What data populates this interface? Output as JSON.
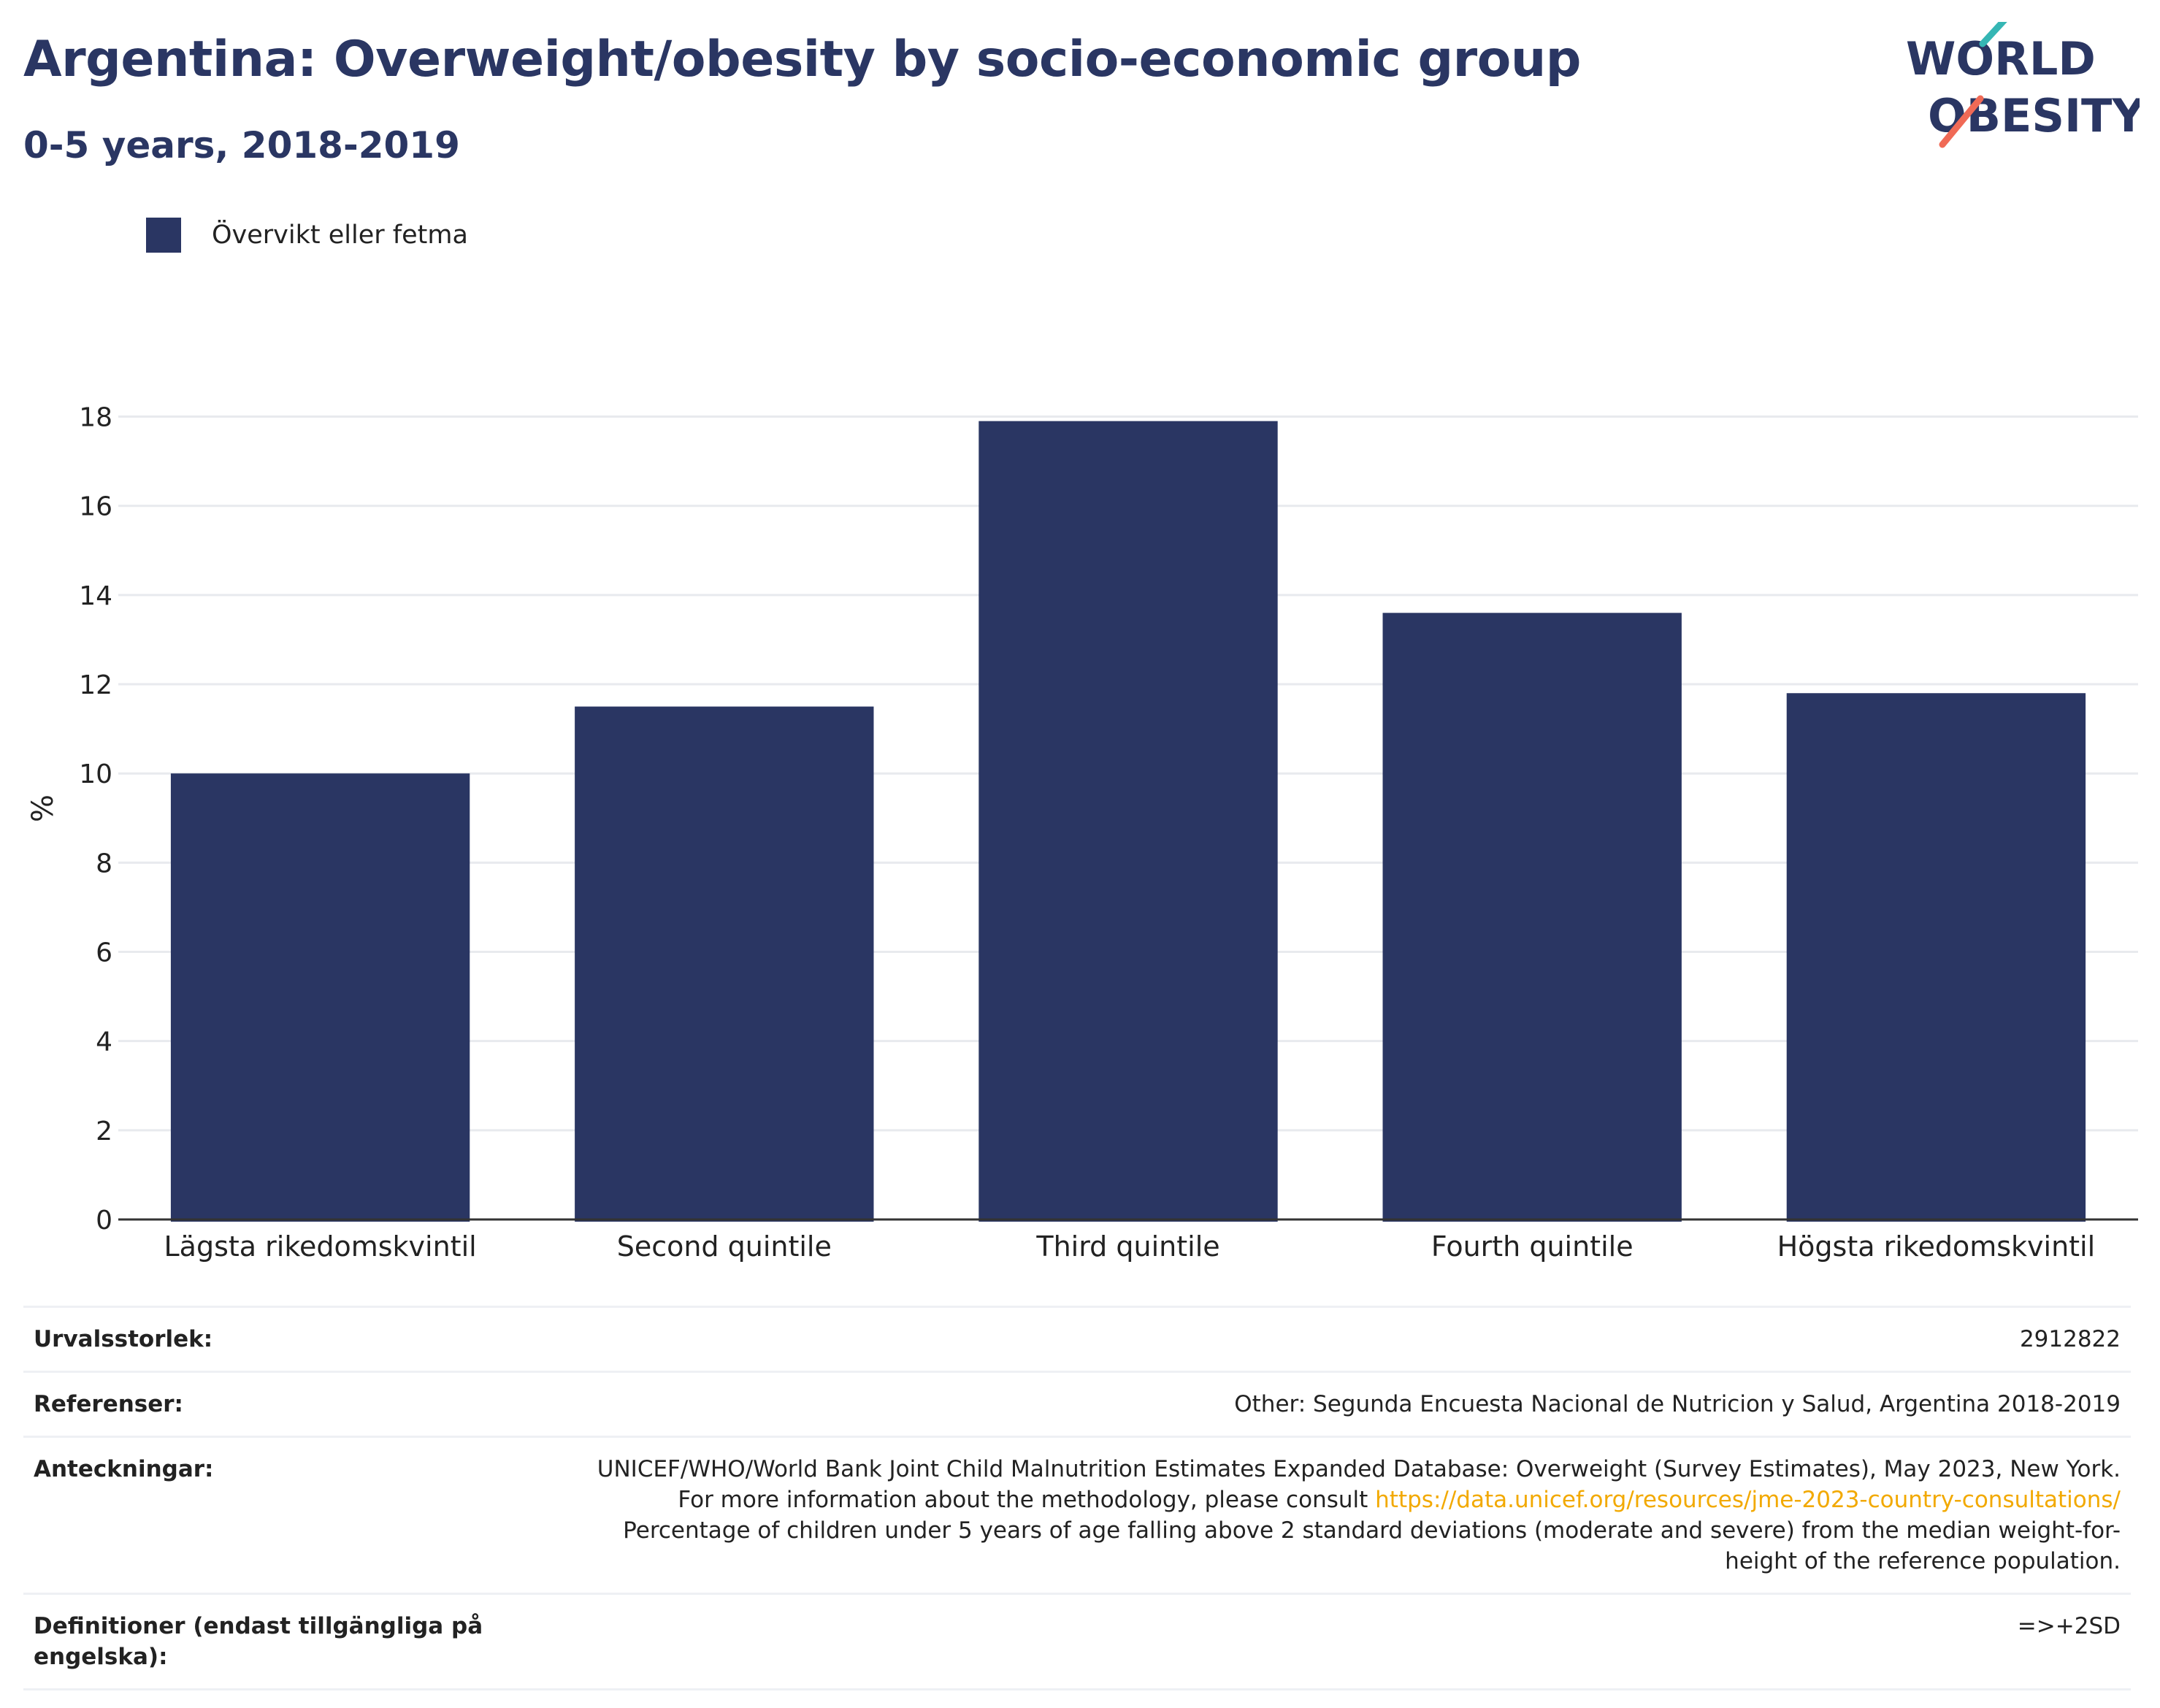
{
  "header": {
    "title": "Argentina: Overweight/obesity by socio-economic group",
    "subtitle": "0-5 years, 2018-2019"
  },
  "logo": {
    "line1": "WORLD",
    "line2": "OBESITY"
  },
  "colors": {
    "bar": "#2a3663",
    "text": "#2a3663",
    "grid": "#e8eaee",
    "link": "#f2a900"
  },
  "chart_data": {
    "type": "bar",
    "title": "Argentina: Overweight/obesity by socio-economic group",
    "subtitle": "0-5 years, 2018-2019",
    "categories": [
      "Lägsta rikedomskvintil",
      "Second quintile",
      "Third quintile",
      "Fourth quintile",
      "Högsta rikedomskvintil"
    ],
    "series": [
      {
        "name": "Övervikt eller fetma",
        "values": [
          10.0,
          11.5,
          17.9,
          13.6,
          11.8
        ]
      }
    ],
    "xlabel": "",
    "ylabel": "%",
    "ylim": [
      0,
      18.5
    ],
    "yticks": [
      0,
      2,
      4,
      6,
      8,
      10,
      12,
      14,
      16,
      18
    ],
    "grid": true,
    "legend": "top-left"
  },
  "footer": {
    "rows": [
      {
        "label": "Urvalsstorlek:",
        "value": "2912822"
      },
      {
        "label": "Referenser:",
        "value": "Other: Segunda Encuesta Nacional de Nutricion y Salud, Argentina 2018-2019"
      },
      {
        "label": "Anteckningar:",
        "value_pre": "UNICEF/WHO/World Bank Joint Child Malnutrition Estimates Expanded Database: Overweight (Survey Estimates), May 2023, New York. For more information about the methodology, please consult",
        "link": "https://data.unicef.org/resources/jme-2023-country-consultations/",
        "value_post": "Percentage of children under 5 years of age falling above 2 standard deviations (moderate and severe) from the median weight-for-height of the reference population."
      },
      {
        "label": "Definitioner (endast tillgängliga på engelska):",
        "value": "=>+2SD"
      }
    ]
  }
}
